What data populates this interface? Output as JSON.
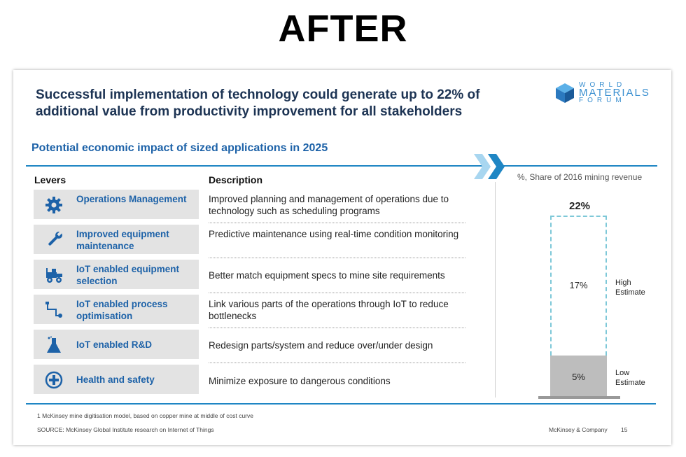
{
  "header_label": "AFTER",
  "slide": {
    "headline_line1": "Successful implementation of technology could generate up to 22% of",
    "headline_line2": "additional value from productivity improvement for all stakeholders",
    "logo": {
      "line1": "WORLD",
      "line2": "MATERIALS",
      "line3": "FORUM",
      "color": "#3a8fd0"
    },
    "subtitle": "Potential economic impact of sized applications in 2025",
    "levers_header": "Levers",
    "description_header": "Description",
    "share_label": "%, Share of 2016 mining revenue",
    "levers": [
      {
        "label": "Operations Management",
        "icon": "gear-icon",
        "description": "Improved planning and management of operations due to technology such as scheduling programs"
      },
      {
        "label": "Improved equipment maintenance",
        "icon": "wrench-icon",
        "description": "Predictive maintenance using real-time condition monitoring"
      },
      {
        "label": "IoT enabled equipment selection",
        "icon": "tractor-icon",
        "description": "Better match equipment specs to mine site requirements"
      },
      {
        "label": "IoT enabled process optimisation",
        "icon": "process-flow-icon",
        "description": "Link various parts of the operations through IoT to reduce bottlenecks"
      },
      {
        "label": "IoT enabled R&D",
        "icon": "flask-icon",
        "description": "Redesign parts/system and reduce over/under design"
      },
      {
        "label": "Health and safety",
        "icon": "plus-circle-icon",
        "description": "Minimize exposure to dangerous conditions"
      }
    ],
    "chart": {
      "total_label": "22%",
      "high_value": "17%",
      "high_label": "High Estimate",
      "low_value": "5%",
      "low_label": "Low Estimate"
    },
    "footnote": "1 McKinsey mine digitisation model, based on copper mine at middle of cost curve",
    "source": "SOURCE: McKinsey Global Institute research on Internet of Things",
    "company": "McKinsey & Company",
    "page_number": "15",
    "colors": {
      "accent": "#1f86c4",
      "title": "#1c3353",
      "lever_text": "#1d62a8"
    }
  },
  "chart_data": {
    "type": "bar",
    "categories": [
      "Low Estimate",
      "High Estimate"
    ],
    "values": [
      5,
      17
    ],
    "total": 22,
    "ylabel": "%, Share of 2016 mining revenue"
  }
}
